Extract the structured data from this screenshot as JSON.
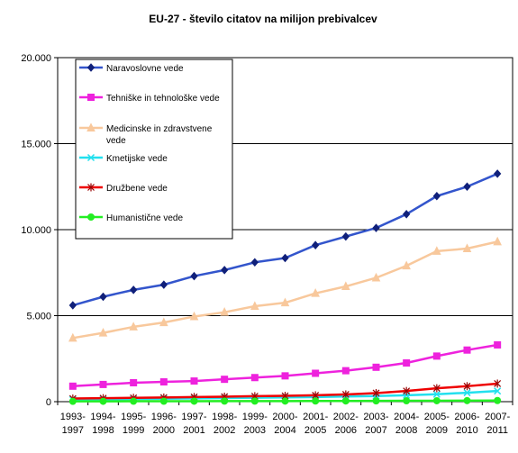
{
  "chart_data": {
    "type": "line",
    "title": "EU-27 - število citatov na milijon prebivalcev",
    "xlabel": "",
    "ylabel": "",
    "ylim": [
      0,
      20000
    ],
    "yticks": [
      0,
      5000,
      10000,
      15000,
      20000
    ],
    "ytick_labels": [
      "0",
      "5.000",
      "10.000",
      "15.000",
      "20.000"
    ],
    "grid": "horizontal",
    "legend_position": "top-left",
    "categories": [
      "1993-1997",
      "1994-1998",
      "1995-1999",
      "1996-2000",
      "1997-2001",
      "1998-2002",
      "1999-2003",
      "2000-2004",
      "2001-2005",
      "2002-2006",
      "2003-2007",
      "2004-2008",
      "2005-2009",
      "2006-2010",
      "2007-2011"
    ],
    "category_lines": [
      [
        "1993-",
        "1997"
      ],
      [
        "1994-",
        "1998"
      ],
      [
        "1995-",
        "1999"
      ],
      [
        "1996-",
        "2000"
      ],
      [
        "1997-",
        "2001"
      ],
      [
        "1998-",
        "2002"
      ],
      [
        "1999-",
        "2003"
      ],
      [
        "2000-",
        "2004"
      ],
      [
        "2001-",
        "2005"
      ],
      [
        "2002-",
        "2006"
      ],
      [
        "2003-",
        "2007"
      ],
      [
        "2004-",
        "2008"
      ],
      [
        "2005-",
        "2009"
      ],
      [
        "2006-",
        "2010"
      ],
      [
        "2007-",
        "2011"
      ]
    ],
    "series": [
      {
        "name": "Naravoslovne vede",
        "color": "#3355cc",
        "marker": "diamond",
        "values": [
          5600,
          6100,
          6500,
          6800,
          7300,
          7650,
          8100,
          8350,
          9100,
          9600,
          10100,
          10900,
          11950,
          12500,
          13250
        ]
      },
      {
        "name": "Tehniške in tehnološke vede",
        "color": "#ee22dd",
        "marker": "square",
        "values": [
          900,
          1000,
          1100,
          1150,
          1200,
          1300,
          1400,
          1500,
          1650,
          1800,
          2000,
          2250,
          2650,
          3000,
          3300
        ]
      },
      {
        "name": "Medicinske in zdravstvene vede",
        "color": "#f8c89c",
        "marker": "triangle",
        "values": [
          3700,
          4000,
          4350,
          4600,
          4950,
          5200,
          5550,
          5750,
          6300,
          6700,
          7200,
          7900,
          8750,
          8900,
          9300
        ]
      },
      {
        "name": "Kmetijske vede",
        "color": "#22e0ee",
        "marker": "x",
        "values": [
          120,
          130,
          150,
          170,
          190,
          210,
          230,
          250,
          270,
          300,
          330,
          370,
          430,
          520,
          620
        ]
      },
      {
        "name": "Družbene vede",
        "color": "#ee0000",
        "marker": "star",
        "values": [
          180,
          200,
          220,
          240,
          270,
          290,
          320,
          340,
          370,
          420,
          500,
          620,
          780,
          900,
          1050
        ]
      },
      {
        "name": "Humanistične vede",
        "color": "#22ee22",
        "marker": "circle",
        "values": [
          20,
          22,
          24,
          26,
          28,
          30,
          32,
          35,
          38,
          42,
          45,
          50,
          55,
          60,
          65
        ]
      }
    ],
    "legend_lines": [
      [
        "Naravoslovne vede"
      ],
      [
        "Tehniške in tehnološke vede"
      ],
      [
        "Medicinske in zdravstvene",
        "vede"
      ],
      [
        "Kmetijske vede"
      ],
      [
        "Družbene vede"
      ],
      [
        "Humanistične vede"
      ]
    ]
  }
}
